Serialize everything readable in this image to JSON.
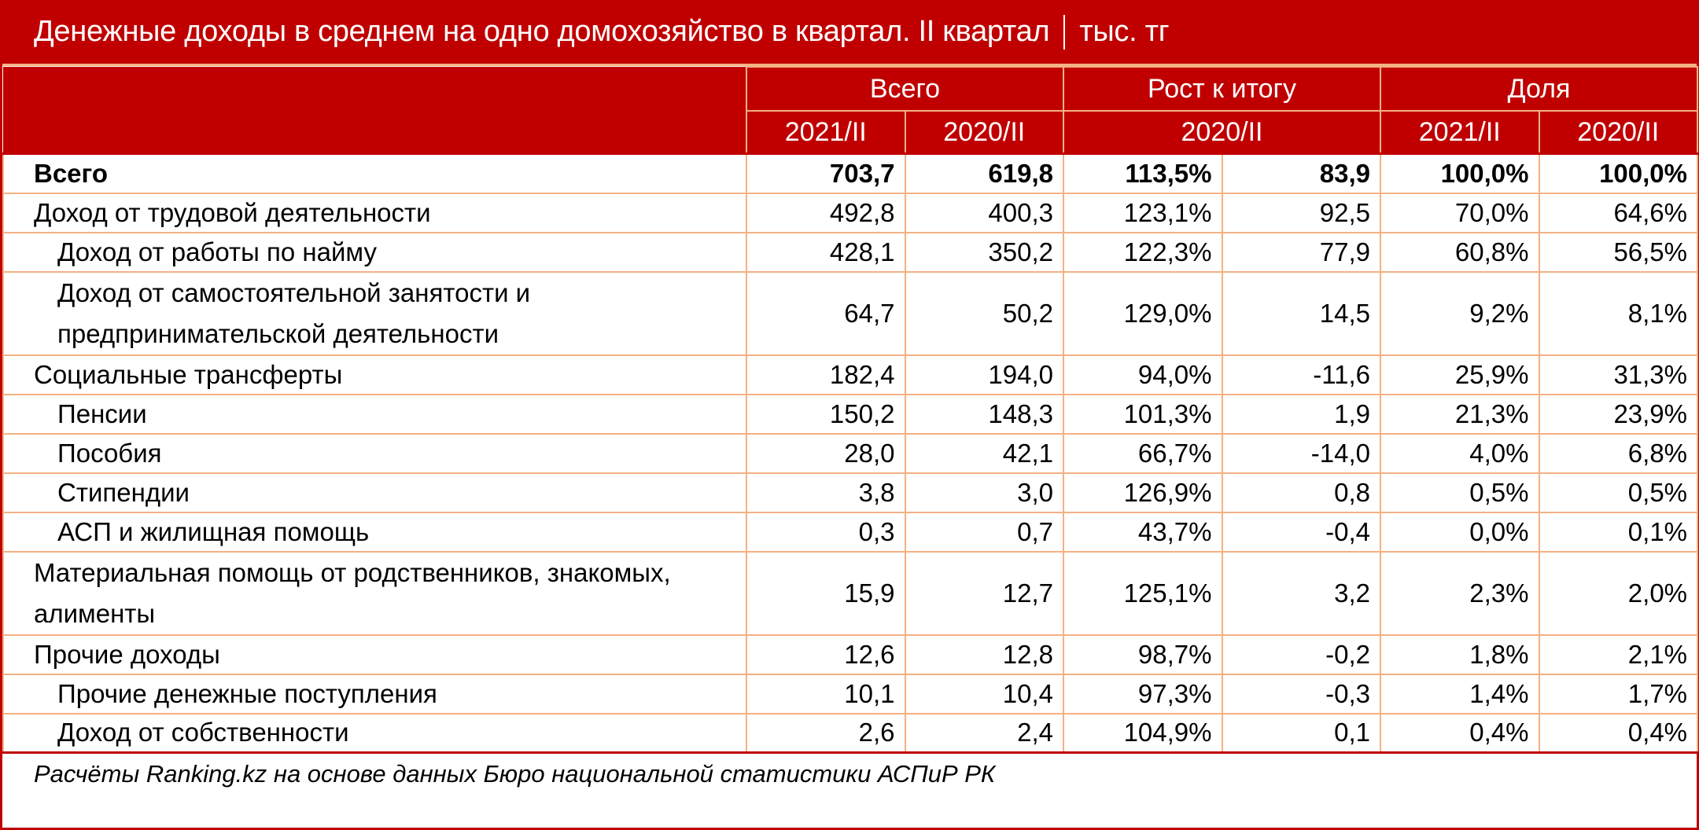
{
  "title": {
    "main": "Денежные доходы в среднем на одно домохозяйство в квартал. II квартал",
    "unit": "тыс. тг"
  },
  "header": {
    "groups": [
      {
        "label": "Всего",
        "colspan": 2
      },
      {
        "label": "Рост к итогу",
        "colspan": 2
      },
      {
        "label": "Доля",
        "colspan": 2
      }
    ],
    "subheaders": [
      {
        "label": "2021/II",
        "colspan": 1
      },
      {
        "label": "2020/II",
        "colspan": 1
      },
      {
        "label": "2020/II",
        "colspan": 2
      },
      {
        "label": "2021/II",
        "colspan": 1
      },
      {
        "label": "2020/II",
        "colspan": 1
      }
    ]
  },
  "rows": [
    {
      "label": "Всего",
      "total_2021": "703,7",
      "total_2020": "619,8",
      "growth_pct": "113,5%",
      "growth_abs": "83,9",
      "share_2021": "100,0%",
      "share_2020": "100,0%"
    },
    {
      "label": "Доход от трудовой деятельности",
      "total_2021": "492,8",
      "total_2020": "400,3",
      "growth_pct": "123,1%",
      "growth_abs": "92,5",
      "share_2021": "70,0%",
      "share_2020": "64,6%"
    },
    {
      "label": "Доход от работы по найму",
      "total_2021": "428,1",
      "total_2020": "350,2",
      "growth_pct": "122,3%",
      "growth_abs": "77,9",
      "share_2021": "60,8%",
      "share_2020": "56,5%"
    },
    {
      "label": "Доход от самостоятельной занятости и предпринимательской деятельности",
      "total_2021": "64,7",
      "total_2020": "50,2",
      "growth_pct": "129,0%",
      "growth_abs": "14,5",
      "share_2021": "9,2%",
      "share_2020": "8,1%"
    },
    {
      "label": "Социальные трансферты",
      "total_2021": "182,4",
      "total_2020": "194,0",
      "growth_pct": "94,0%",
      "growth_abs": "-11,6",
      "share_2021": "25,9%",
      "share_2020": "31,3%"
    },
    {
      "label": "Пенсии",
      "total_2021": "150,2",
      "total_2020": "148,3",
      "growth_pct": "101,3%",
      "growth_abs": "1,9",
      "share_2021": "21,3%",
      "share_2020": "23,9%"
    },
    {
      "label": "Пособия",
      "total_2021": "28,0",
      "total_2020": "42,1",
      "growth_pct": "66,7%",
      "growth_abs": "-14,0",
      "share_2021": "4,0%",
      "share_2020": "6,8%"
    },
    {
      "label": "Стипендии",
      "total_2021": "3,8",
      "total_2020": "3,0",
      "growth_pct": "126,9%",
      "growth_abs": "0,8",
      "share_2021": "0,5%",
      "share_2020": "0,5%"
    },
    {
      "label": "АСП и жилищная помощь",
      "total_2021": "0,3",
      "total_2020": "0,7",
      "growth_pct": "43,7%",
      "growth_abs": "-0,4",
      "share_2021": "0,0%",
      "share_2020": "0,1%"
    },
    {
      "label": "Материальная помощь от родственников, знакомых, алименты",
      "total_2021": "15,9",
      "total_2020": "12,7",
      "growth_pct": "125,1%",
      "growth_abs": "3,2",
      "share_2021": "2,3%",
      "share_2020": "2,0%"
    },
    {
      "label": "Прочие доходы",
      "total_2021": "12,6",
      "total_2020": "12,8",
      "growth_pct": "98,7%",
      "growth_abs": "-0,2",
      "share_2021": "1,8%",
      "share_2020": "2,1%"
    },
    {
      "label": "Прочие денежные поступления",
      "total_2021": "10,1",
      "total_2020": "10,4",
      "growth_pct": "97,3%",
      "growth_abs": "-0,3",
      "share_2021": "1,4%",
      "share_2020": "1,7%"
    },
    {
      "label": "Доход от собственности",
      "total_2021": "2,6",
      "total_2020": "2,4",
      "growth_pct": "104,9%",
      "growth_abs": "0,1",
      "share_2021": "0,4%",
      "share_2020": "0,4%"
    }
  ],
  "footer": {
    "source": "Расчёты Ranking.kz на основе данных Бюро национальной статистики АСПиР РК"
  },
  "colors": {
    "header_bg": "#c00000",
    "header_text": "#ffffff",
    "grid_line": "#f4b183",
    "outer_border": "#c00000"
  }
}
